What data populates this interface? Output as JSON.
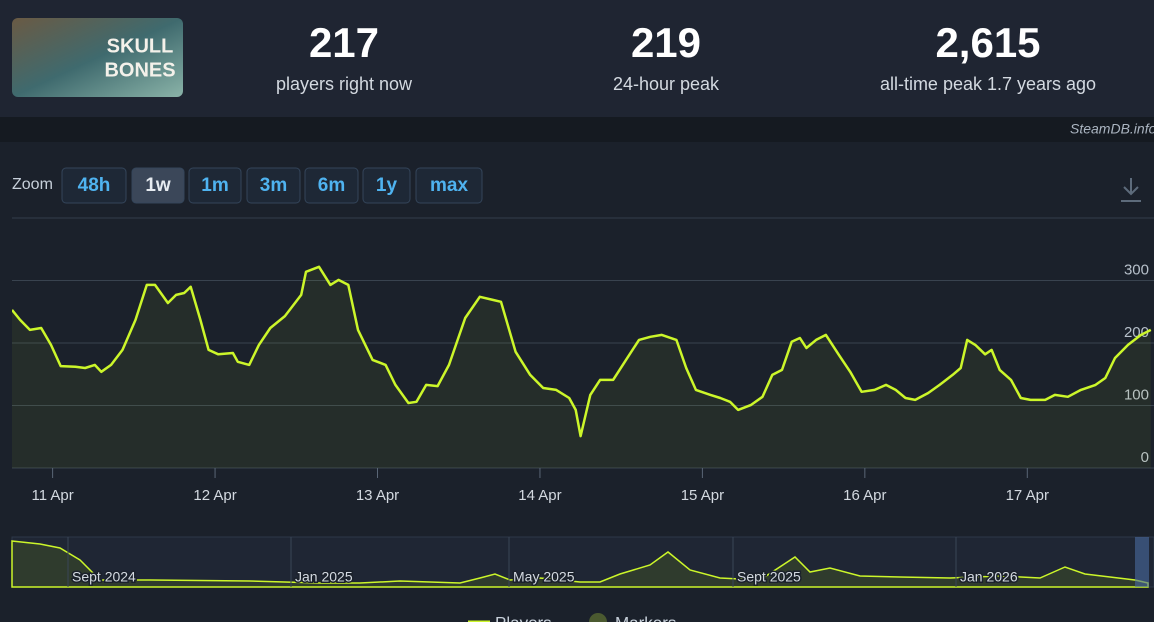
{
  "header": {
    "logo": [
      "SKULL",
      "BONES"
    ],
    "stats": [
      {
        "value": "217",
        "label": "players right now"
      },
      {
        "value": "219",
        "label": "24-hour peak"
      },
      {
        "value": "2,615",
        "label": "all-time peak 1.7 years ago"
      }
    ]
  },
  "watermark": "SteamDB.info",
  "zoom": {
    "label": "Zoom",
    "buttons": [
      "48h",
      "1w",
      "1m",
      "3m",
      "6m",
      "1y",
      "max"
    ],
    "active": 1
  },
  "chart_data": {
    "type": "line",
    "x": [
      10.75,
      10.8,
      10.86,
      10.93,
      10.99,
      11.05,
      11.14,
      11.2,
      11.26,
      11.3,
      11.36,
      11.43,
      11.51,
      11.58,
      11.63,
      11.71,
      11.76,
      11.81,
      11.85,
      11.91,
      11.96,
      12.02,
      12.11,
      12.14,
      12.21,
      12.27,
      12.34,
      12.43,
      12.53,
      12.56,
      12.64,
      12.71,
      12.76,
      12.82,
      12.88,
      12.97,
      13.05,
      13.11,
      13.19,
      13.24,
      13.3,
      13.37,
      13.44,
      13.54,
      13.63,
      13.71,
      13.76,
      13.85,
      13.94,
      14.02,
      14.1,
      14.18,
      14.22,
      14.25,
      14.31,
      14.37,
      14.45,
      14.53,
      14.61,
      14.68,
      14.75,
      14.84,
      14.9,
      14.96,
      15.05,
      15.11,
      15.17,
      15.22,
      15.3,
      15.37,
      15.43,
      15.49,
      15.55,
      15.6,
      15.64,
      15.7,
      15.76,
      15.84,
      15.91,
      15.98,
      16.06,
      16.13,
      16.19,
      16.25,
      16.31,
      16.39,
      16.46,
      16.54,
      16.59,
      16.63,
      16.68,
      16.74,
      16.78,
      16.83,
      16.9,
      16.96,
      17.02,
      17.11,
      17.17,
      17.25,
      17.33,
      17.42,
      17.48,
      17.54,
      17.62,
      17.7,
      17.76
    ],
    "series": [
      {
        "name": "Players",
        "color": "#ccf62a",
        "values": [
          253,
          237,
          221,
          224,
          197,
          163,
          162,
          160,
          165,
          154,
          165,
          189,
          237,
          293,
          293,
          264,
          277,
          280,
          290,
          237,
          189,
          182,
          184,
          170,
          165,
          197,
          224,
          243,
          277,
          314,
          322,
          293,
          301,
          293,
          221,
          173,
          165,
          133,
          104,
          106,
          133,
          131,
          165,
          240,
          274,
          269,
          266,
          186,
          149,
          128,
          125,
          112,
          93,
          51,
          117,
          141,
          141,
          173,
          205,
          210,
          213,
          205,
          160,
          125,
          117,
          112,
          106,
          93,
          101,
          114,
          149,
          157,
          202,
          208,
          192,
          205,
          213,
          181,
          154,
          122,
          125,
          133,
          125,
          112,
          109,
          120,
          133,
          149,
          160,
          205,
          197,
          182,
          189,
          157,
          141,
          112,
          109,
          109,
          117,
          114,
          125,
          133,
          144,
          176,
          197,
          213,
          221
        ]
      }
    ],
    "xlim": [
      10.75,
      17.78
    ],
    "xticks": [
      {
        "value": 11,
        "label": "11 Apr"
      },
      {
        "value": 12,
        "label": "12 Apr"
      },
      {
        "value": 13,
        "label": "13 Apr"
      },
      {
        "value": 14,
        "label": "14 Apr"
      },
      {
        "value": 15,
        "label": "15 Apr"
      },
      {
        "value": 16,
        "label": "16 Apr"
      },
      {
        "value": 17,
        "label": "17 Apr"
      }
    ],
    "ylim": [
      0,
      400
    ],
    "yticks": [
      0,
      100,
      200,
      300
    ],
    "grid": true
  },
  "navigator": {
    "labels": [
      "Sept 2024",
      "Jan 2025",
      "May 2025",
      "Sept 2025",
      "Jan 2026"
    ]
  },
  "legend_markers": "Markers"
}
